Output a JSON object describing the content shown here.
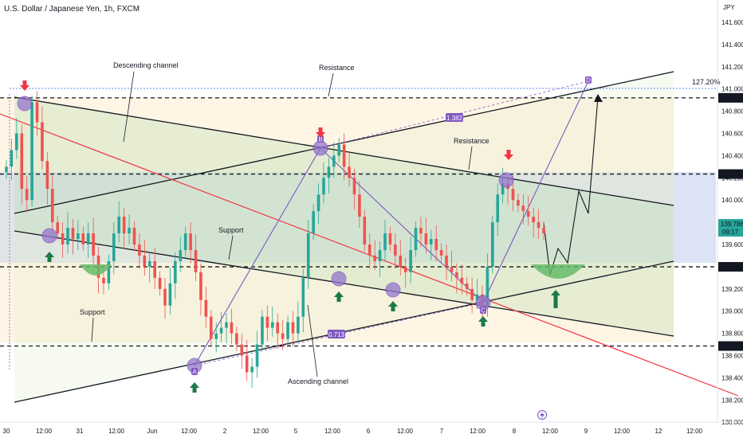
{
  "header": {
    "title": "U.S. Dollar / Japanese Yen, 1h, FXCM",
    "currency": "JPY"
  },
  "colors": {
    "up": "#26a69a",
    "down": "#ef5350",
    "purple": "#7e57c2",
    "accent_red": "#f23645",
    "green_arrow": "#1b7a48",
    "fib_blue": "#2962ff"
  },
  "annotations": {
    "descending_channel": "Descending channel",
    "ascending_channel": "Ascending channel",
    "resistance_top": "Resistance",
    "resistance_mid": "Resistance",
    "support_mid": "Support",
    "support_low": "Support",
    "point_a": "A",
    "point_b": "B",
    "point_c": "C",
    "point_d": "D",
    "ratio_bd": "1.382",
    "ratio_ac": "0.713",
    "fib_ext": "127.20%"
  },
  "levels": {
    "l1": "140.920",
    "l2": "140.234",
    "l3": "139.399",
    "l4": "138.686",
    "last_price": "139.786",
    "countdown": "09:17"
  },
  "chart_data": {
    "type": "candlestick",
    "title": "U.S. Dollar / Japanese Yen, 1h, FXCM",
    "y_axis_unit": "JPY",
    "ylim": [
      137.9,
      141.7
    ],
    "y_ticks": [
      "141.600",
      "141.400",
      "141.200",
      "141.000",
      "140.800",
      "140.600",
      "140.400",
      "140.200",
      "140.000",
      "139.800",
      "139.600",
      "139.400",
      "139.200",
      "139.000",
      "138.800",
      "138.600",
      "138.400",
      "138.200",
      "138.000"
    ],
    "x_ticks": [
      "30",
      "12:00",
      "31",
      "12:00",
      "Jun",
      "12:00",
      "2",
      "12:00",
      "5",
      "12:00",
      "6",
      "12:00",
      "7",
      "12:00",
      "8",
      "12:00",
      "9",
      "12:00",
      "12",
      "12:00"
    ],
    "horizontal_levels": [
      140.92,
      140.234,
      139.399,
      138.686
    ],
    "last_price": 139.786,
    "pattern_points": [
      {
        "label": "A",
        "price": 138.45
      },
      {
        "label": "B",
        "price": 140.45
      },
      {
        "label": "C",
        "price": 139.02
      },
      {
        "label": "D",
        "price": 141.05
      }
    ],
    "close_path": [
      140.3,
      140.45,
      140.6,
      140.1,
      140.0,
      140.88,
      140.7,
      140.35,
      140.1,
      139.8,
      139.7,
      139.6,
      139.75,
      139.65,
      139.7,
      139.6,
      139.7,
      139.5,
      139.3,
      139.25,
      139.45,
      139.7,
      139.85,
      139.7,
      139.75,
      139.6,
      139.5,
      139.4,
      139.45,
      139.3,
      139.2,
      139.05,
      139.25,
      139.45,
      139.55,
      139.7,
      139.55,
      139.35,
      139.1,
      138.95,
      138.75,
      138.8,
      138.85,
      138.9,
      138.8,
      138.7,
      138.6,
      138.45,
      138.5,
      138.7,
      138.95,
      138.85,
      138.9,
      138.8,
      138.75,
      138.9,
      138.8,
      138.95,
      139.3,
      139.7,
      139.9,
      140.05,
      140.2,
      140.3,
      140.4,
      140.5,
      140.3,
      140.2,
      140.05,
      139.85,
      139.6,
      139.5,
      139.45,
      139.55,
      139.7,
      139.6,
      139.5,
      139.4,
      139.35,
      139.55,
      139.75,
      139.7,
      139.6,
      139.65,
      139.55,
      139.5,
      139.4,
      139.35,
      139.3,
      139.25,
      139.2,
      139.1,
      139.15,
      139.05,
      139.4,
      139.8,
      140.05,
      140.15,
      140.1,
      140.0,
      139.95,
      139.9,
      139.85,
      139.8,
      139.75,
      139.7
    ]
  }
}
